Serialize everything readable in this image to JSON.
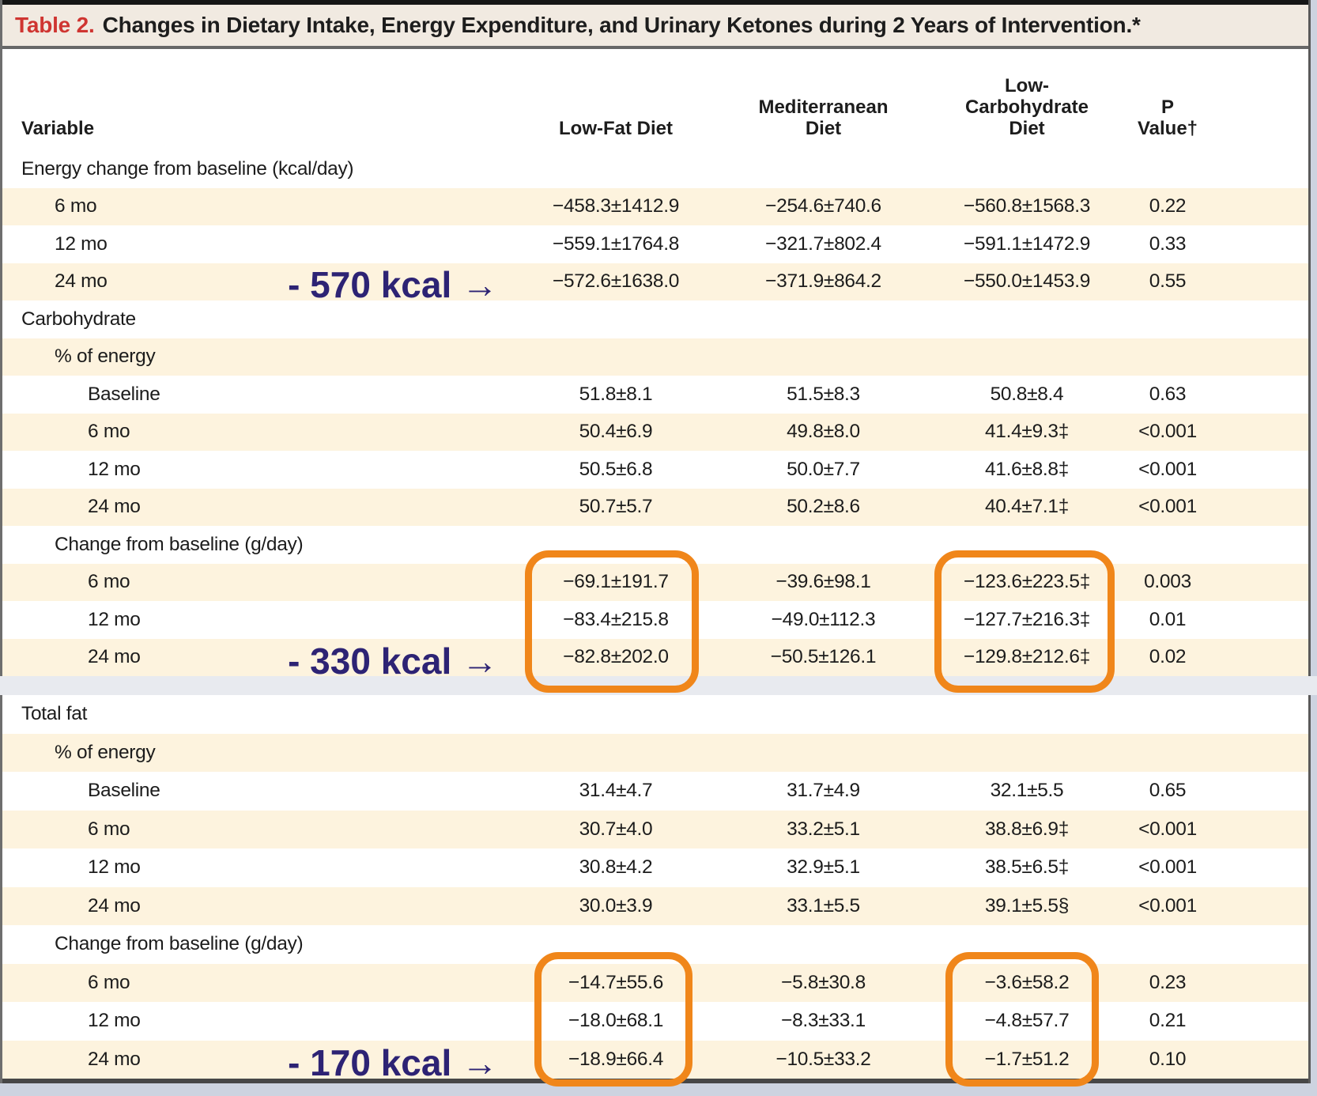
{
  "title": {
    "label": "Table 2.",
    "text": "Changes in Dietary Intake, Energy Expenditure, and Urinary Ketones during 2 Years of Intervention.*"
  },
  "columns": [
    "Variable",
    "Low-Fat Diet",
    "Mediterranean\nDiet",
    "Low-\nCarbohydrate\nDiet",
    "P Value†"
  ],
  "colors": {
    "title_label_red": "#cf3531",
    "title_bar_bg": "#f1eae1",
    "shaded_row_bg": "#fdf3de",
    "annotation_navy": "#2d2374",
    "highlight_orange": "#f0861a"
  },
  "annotations": {
    "energy_24mo": "- 570 kcal →",
    "carb_24mo": "- 330 kcal →",
    "fat_24mo": "- 170 kcal →"
  },
  "highlights": [
    {
      "section": "Carbohydrate change from baseline (g/day)",
      "column": "Low-Fat Diet",
      "rows": [
        "6 mo",
        "12 mo",
        "24 mo"
      ]
    },
    {
      "section": "Carbohydrate change from baseline (g/day)",
      "column": "Low-Carbohydrate Diet",
      "rows": [
        "6 mo",
        "12 mo",
        "24 mo"
      ]
    },
    {
      "section": "Total fat change from baseline (g/day)",
      "column": "Low-Fat Diet",
      "rows": [
        "6 mo",
        "12 mo",
        "24 mo"
      ]
    },
    {
      "section": "Total fat change from baseline (g/day)",
      "column": "Low-Carbohydrate Diet",
      "rows": [
        "6 mo",
        "12 mo",
        "24 mo"
      ]
    }
  ],
  "panels": [
    {
      "rows": [
        {
          "label": "Energy change from baseline (kcal/day)",
          "indent": 0,
          "shaded": false,
          "values": [
            "",
            "",
            "",
            ""
          ]
        },
        {
          "label": "6 mo",
          "indent": 1,
          "shaded": true,
          "values": [
            "−458.3±1412.9",
            "−254.6±740.6",
            "−560.8±1568.3",
            "0.22"
          ]
        },
        {
          "label": "12 mo",
          "indent": 1,
          "shaded": false,
          "values": [
            "−559.1±1764.8",
            "−321.7±802.4",
            "−591.1±1472.9",
            "0.33"
          ]
        },
        {
          "label": "24 mo",
          "indent": 1,
          "shaded": true,
          "values": [
            "−572.6±1638.0",
            "−371.9±864.2",
            "−550.0±1453.9",
            "0.55"
          ],
          "annotation": "energy_24mo"
        },
        {
          "label": "Carbohydrate",
          "indent": 0,
          "shaded": false,
          "values": [
            "",
            "",
            "",
            ""
          ]
        },
        {
          "label": "% of energy",
          "indent": 1,
          "shaded": true,
          "values": [
            "",
            "",
            "",
            ""
          ]
        },
        {
          "label": "Baseline",
          "indent": 2,
          "shaded": false,
          "values": [
            "51.8±8.1",
            "51.5±8.3",
            "50.8±8.4",
            "0.63"
          ]
        },
        {
          "label": "6 mo",
          "indent": 2,
          "shaded": true,
          "values": [
            "50.4±6.9",
            "49.8±8.0",
            "41.4±9.3‡",
            "<0.001"
          ]
        },
        {
          "label": "12 mo",
          "indent": 2,
          "shaded": false,
          "values": [
            "50.5±6.8",
            "50.0±7.7",
            "41.6±8.8‡",
            "<0.001"
          ]
        },
        {
          "label": "24 mo",
          "indent": 2,
          "shaded": true,
          "values": [
            "50.7±5.7",
            "50.2±8.6",
            "40.4±7.1‡",
            "<0.001"
          ]
        },
        {
          "label": "Change from baseline (g/day)",
          "indent": 1,
          "shaded": false,
          "values": [
            "",
            "",
            "",
            ""
          ]
        },
        {
          "label": "6 mo",
          "indent": 2,
          "shaded": true,
          "values": [
            "−69.1±191.7",
            "−39.6±98.1",
            "−123.6±223.5‡",
            "0.003"
          ]
        },
        {
          "label": "12 mo",
          "indent": 2,
          "shaded": false,
          "values": [
            "−83.4±215.8",
            "−49.0±112.3",
            "−127.7±216.3‡",
            "0.01"
          ]
        },
        {
          "label": "24 mo",
          "indent": 2,
          "shaded": true,
          "values": [
            "−82.8±202.0",
            "−50.5±126.1",
            "−129.8±212.6‡",
            "0.02"
          ],
          "annotation": "carb_24mo"
        }
      ]
    },
    {
      "rows": [
        {
          "label": "Total fat",
          "indent": 0,
          "shaded": false,
          "values": [
            "",
            "",
            "",
            ""
          ]
        },
        {
          "label": "% of energy",
          "indent": 1,
          "shaded": true,
          "values": [
            "",
            "",
            "",
            ""
          ]
        },
        {
          "label": "Baseline",
          "indent": 2,
          "shaded": false,
          "values": [
            "31.4±4.7",
            "31.7±4.9",
            "32.1±5.5",
            "0.65"
          ]
        },
        {
          "label": "6 mo",
          "indent": 2,
          "shaded": true,
          "values": [
            "30.7±4.0",
            "33.2±5.1",
            "38.8±6.9‡",
            "<0.001"
          ]
        },
        {
          "label": "12 mo",
          "indent": 2,
          "shaded": false,
          "values": [
            "30.8±4.2",
            "32.9±5.1",
            "38.5±6.5‡",
            "<0.001"
          ]
        },
        {
          "label": "24 mo",
          "indent": 2,
          "shaded": true,
          "values": [
            "30.0±3.9",
            "33.1±5.5",
            "39.1±5.5§",
            "<0.001"
          ]
        },
        {
          "label": "Change from baseline (g/day)",
          "indent": 1,
          "shaded": false,
          "values": [
            "",
            "",
            "",
            ""
          ]
        },
        {
          "label": "6 mo",
          "indent": 2,
          "shaded": true,
          "values": [
            "−14.7±55.6",
            "−5.8±30.8",
            "−3.6±58.2",
            "0.23"
          ]
        },
        {
          "label": "12 mo",
          "indent": 2,
          "shaded": false,
          "values": [
            "−18.0±68.1",
            "−8.3±33.1",
            "−4.8±57.7",
            "0.21"
          ]
        },
        {
          "label": "24 mo",
          "indent": 2,
          "shaded": true,
          "values": [
            "−18.9±66.4",
            "−10.5±33.2",
            "−1.7±51.2",
            "0.10"
          ],
          "annotation": "fat_24mo"
        }
      ]
    }
  ]
}
